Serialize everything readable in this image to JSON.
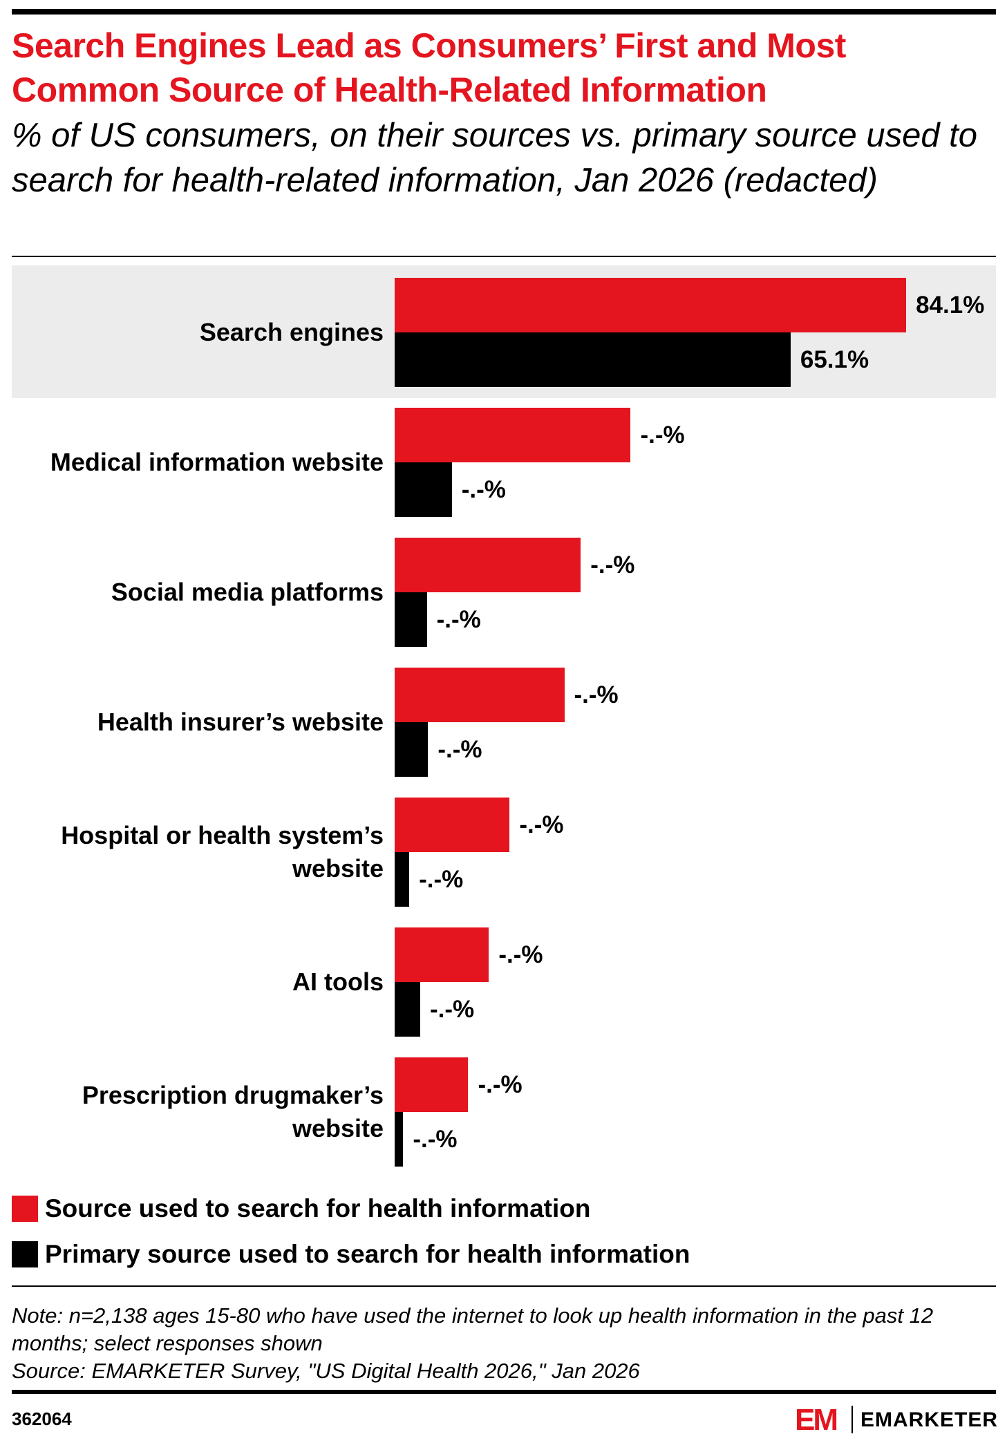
{
  "chart_data": {
    "type": "bar",
    "orientation": "horizontal",
    "title": "Search Engines Lead as Consumers’ First and Most Common Source of Health-Related Information",
    "subtitle": "% of US consumers, on their sources vs. primary source used to search for health-related information, Jan 2026 (redacted)",
    "categories": [
      "Search engines",
      "Medical information website",
      "Social media platforms",
      "Health insurer’s website",
      "Hospital or health system’s website",
      "AI tools",
      "Prescription drugmaker’s website"
    ],
    "series": [
      {
        "name": "Source used to search for health information",
        "color": "#e4151f",
        "values": [
          84.1,
          38.8,
          30.6,
          27.9,
          18.9,
          15.5,
          12.1
        ],
        "value_labels": [
          "84.1%",
          "-.-%",
          "-.-%",
          "-.-%",
          "-.-%",
          "-.-%",
          "-.-%"
        ]
      },
      {
        "name": "Primary source used to search for health information",
        "color": "#000000",
        "values": [
          65.1,
          9.4,
          5.3,
          5.5,
          2.4,
          4.2,
          1.4
        ],
        "value_labels": [
          "65.1%",
          "-.-%",
          "-.-%",
          "-.-%",
          "-.-%",
          "-.-%",
          "-.-%"
        ]
      }
    ],
    "highlight": {
      "index": 0,
      "color": "#ececec"
    },
    "note": "Note: n=2,138 ages 15-80 who have used the internet to look up health information in the past 12 months; select responses shown",
    "source": "Source: EMARKETER Survey, \"US Digital Health 2026,\" Jan 2026"
  },
  "footer": {
    "id": "362064",
    "logo_mark": "EM",
    "brand": "EMARKETER"
  }
}
